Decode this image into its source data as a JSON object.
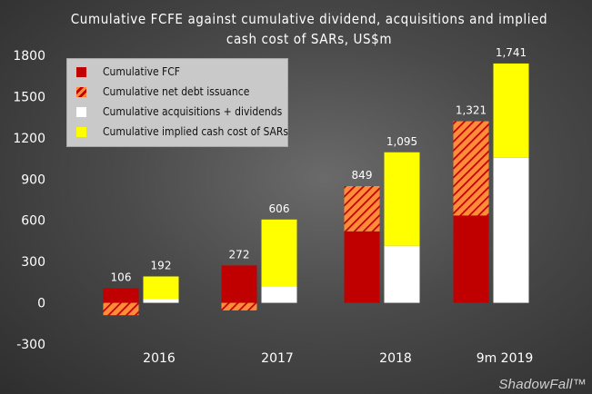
{
  "chart_data": {
    "type": "bar",
    "title_line1": "Cumulative FCFE against cumulative dividend, acquisitions and implied",
    "title_line2": "cash cost of SARs, US$m",
    "categories": [
      "2016",
      "2017",
      "2018",
      "9m 2019"
    ],
    "ylim": [
      -300,
      1800
    ],
    "yticks": [
      "1800",
      "1500",
      "1200",
      "900",
      "600",
      "300",
      "0",
      "-300"
    ],
    "ytick_values": [
      1800,
      1500,
      1200,
      900,
      600,
      300,
      0,
      -300
    ],
    "grid": false,
    "legend_position": "top-left",
    "series": [
      {
        "name": "Cumulative FCF",
        "stack": "left",
        "color": "#c00000",
        "values": [
          106,
          272,
          520,
          635
        ]
      },
      {
        "name": "Cumulative net debt issuance",
        "stack": "left",
        "color": "#ff8c3a",
        "pattern": "hatch",
        "values": [
          -90,
          -55,
          329,
          686
        ]
      },
      {
        "name": "Cumulative acquisitions + dividends",
        "stack": "right",
        "color": "#ffffff",
        "values": [
          30,
          120,
          415,
          1055
        ]
      },
      {
        "name": "Cumulative implied cash cost of SARs",
        "stack": "right",
        "color": "#ffff00",
        "values": [
          162,
          486,
          680,
          686
        ]
      }
    ],
    "totals_left": [
      "106",
      "272",
      "849",
      "1,321"
    ],
    "totals_right": [
      "192",
      "606",
      "1,095",
      "1,741"
    ]
  },
  "watermark": "ShadowFall™"
}
